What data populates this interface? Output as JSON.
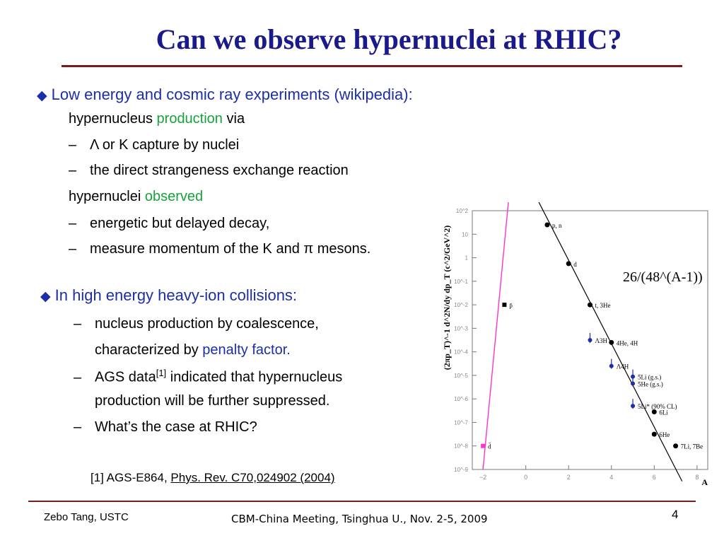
{
  "slide": {
    "title": "Can we observe hypernuclei at RHIC?",
    "page_number": "4"
  },
  "section1": {
    "bullet_icon": "diamond-bullet",
    "heading": "Low energy and cosmic ray experiments (wikipedia):",
    "production_prefix": "hypernucleus ",
    "production_word": "production",
    "production_suffix": " via",
    "items_a": [
      "Λ or K capture by nuclei",
      "the direct strangeness exchange reaction"
    ],
    "observed_prefix": "hypernuclei ",
    "observed_word": "observed",
    "items_b": [
      "energetic but delayed decay,",
      "measure momentum of the K and π mesons."
    ]
  },
  "section2": {
    "bullet_icon": "diamond-bullet",
    "heading": "In high energy heavy-ion collisions:",
    "item1_line1": "nucleus production by coalescence,",
    "item1_line2_prefix": "characterized by ",
    "item1_line2_highlight": "penalty factor.",
    "item2_line1_prefix": "AGS data",
    "item2_line1_sup": "[1]",
    "item2_line1_suffix": " indicated that hypernucleus",
    "item2_line2": "production will be further suppressed.",
    "item3": "What’s the case at RHIC?"
  },
  "reference": {
    "prefix": "[1] AGS-E864, ",
    "link": "Phys. Rev. C70,024902 (2004)"
  },
  "footer": {
    "left": "Zebo Tang, USTC",
    "center": "CBM-China Meeting, Tsinghua U., Nov. 2-5, 2009"
  },
  "colors": {
    "title": "#1a1a8c",
    "heading_blue": "#1c2ea8",
    "highlight_green": "#16a33a",
    "rule": "#7a1a1a",
    "magenta_line": "#ff33cc"
  },
  "chart_data": {
    "type": "scatter",
    "xlabel": "A",
    "ylabel": "(2πp_T)^-1 d^2N/dy dp_T (c^2/GeV^2)",
    "x_ticks": [
      "−2",
      "0",
      "2",
      "4",
      "6",
      "8"
    ],
    "y_ticks": [
      "10^2",
      "10",
      "1",
      "10^-1",
      "10^-2",
      "10^-3",
      "10^-4",
      "10^-5",
      "10^-6",
      "10^-7",
      "10^-8",
      "10^-9"
    ],
    "xlim": [
      -2.5,
      8.5
    ],
    "ylim_log10": [
      -9,
      2
    ],
    "penalty_annotation": "26/(48^(A-1))",
    "series": [
      {
        "points": [
          {
            "x": 1,
            "log10y": 1.4,
            "label": "p, n"
          },
          {
            "x": 2,
            "log10y": -0.25,
            "label": "d"
          },
          {
            "x": 3,
            "log10y": -2.0,
            "label": "t, 3He"
          },
          {
            "x": 4,
            "log10y": -3.6,
            "label": "4He, 4H"
          },
          {
            "x": 6,
            "log10y": -6.55,
            "label": "6Li"
          },
          {
            "x": 6,
            "log10y": -7.5,
            "label": "6He"
          },
          {
            "x": 7,
            "log10y": -8.0,
            "label": "7Li, 7Be"
          }
        ]
      },
      {
        "points": [
          {
            "x": -1,
            "log10y": -2.0,
            "label": "p̄"
          },
          {
            "x": -2,
            "log10y": -8.0,
            "label": "d̄"
          }
        ]
      },
      {
        "points": [
          {
            "x": 3,
            "log10y": -3.5,
            "label": "Λ3H"
          },
          {
            "x": 4,
            "log10y": -4.6,
            "label": "Λ4H"
          },
          {
            "x": 5,
            "log10y": -5.05,
            "label": "5Li (g.s.)"
          },
          {
            "x": 5,
            "log10y": -5.35,
            "label": "5He (g.s.)"
          },
          {
            "x": 5,
            "log10y": -6.3,
            "label": "5Li* (90% CL)"
          }
        ]
      }
    ]
  }
}
